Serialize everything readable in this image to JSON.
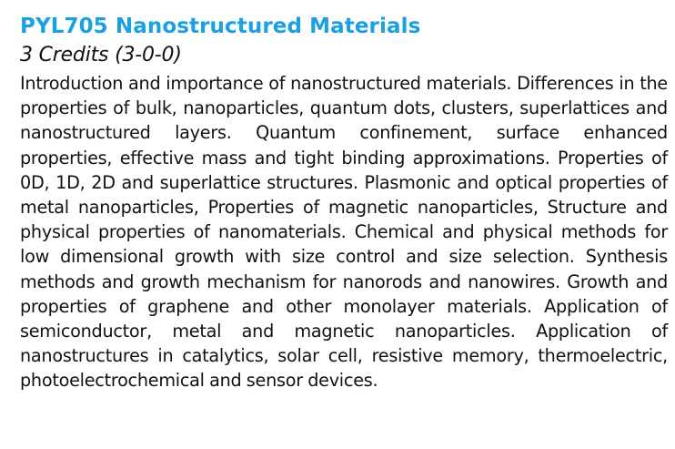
{
  "course": {
    "title": "PYL705 Nanostructured Materials",
    "credits": "3 Credits (3-0-0)",
    "description": "Introduction and importance of nanostructured materials. Differences in the properties of bulk, nanoparticles, quantum dots, clusters, superlattices and nanostructured layers. Quantum confinement, surface enhanced properties, effective mass and tight binding approximations. Properties of 0D, 1D, 2D and superlattice structures. Plasmonic and optical properties of metal nanoparticles, Properties of magnetic nanoparticles, Structure and physical properties of nanomaterials. Chemical and physical methods for low dimensional growth with size control and size selection. Synthesis methods and growth mechanism for nanorods and nanowires. Growth and properties of graphene and other monolayer materials. Application of semiconductor, metal and magnetic nanoparticles. Application of nanostructures in catalytics, solar cell, resistive memory, thermoelectric, photoelectrochemical and sensor devices."
  },
  "colors": {
    "title": "#1ba1e2",
    "text": "#111111",
    "background": "#ffffff"
  }
}
